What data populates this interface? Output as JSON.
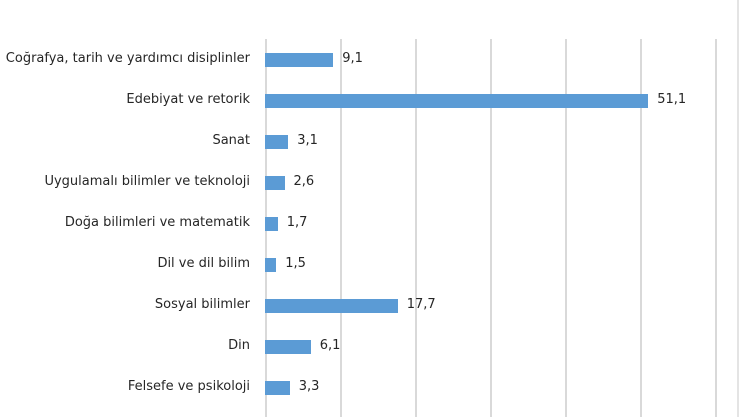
{
  "chart_data": {
    "type": "bar",
    "orientation": "horizontal",
    "title": "",
    "xlabel": "",
    "ylabel": "",
    "xlim": [
      0,
      60
    ],
    "grid": true,
    "gridline_values": [
      0,
      10,
      20,
      30,
      40,
      50,
      60
    ],
    "legend": null,
    "bar_color": "#5b9bd5",
    "categories": [
      "Coğrafya, tarih ve yardımcı disiplinler",
      "Edebiyat ve retorik",
      "Sanat",
      "Uygulamalı bilimler ve teknoloji",
      "Doğa bilimleri ve matematik",
      "Dil ve dil bilim",
      "Sosyal bilimler",
      "Din",
      "Felsefe ve psikoloji"
    ],
    "values": [
      9.1,
      51.1,
      3.1,
      2.6,
      1.7,
      1.5,
      17.7,
      6.1,
      3.3
    ],
    "value_labels": [
      "9,1",
      "51,1",
      "3,1",
      "2,6",
      "1,7",
      "1,5",
      "17,7",
      "6,1",
      "3,3"
    ]
  }
}
